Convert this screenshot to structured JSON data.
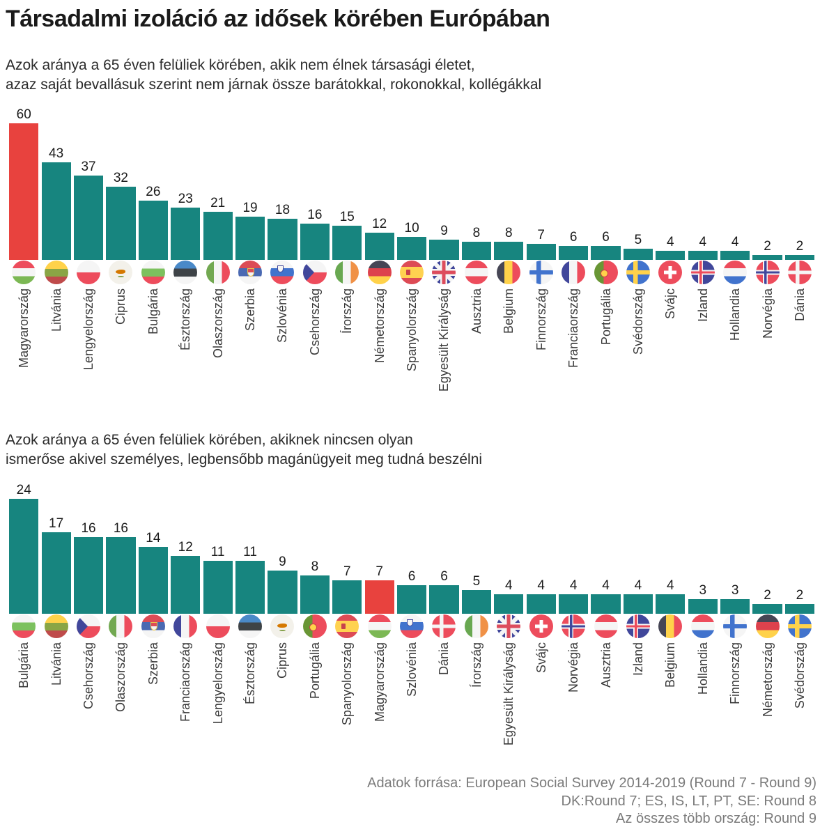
{
  "header": {
    "title": "Társadalmi izoláció az idősek körében Európában"
  },
  "footer": {
    "lines": [
      "Adatok forrása: European Social Survey 2014-2019 (Round 7 - Round 9)",
      "DK:Round 7;  ES, IS, LT, PT, SE: Round 8",
      "Az összes több ország: Round 9"
    ]
  },
  "colors": {
    "bar": "#17857f",
    "highlight": "#e8423e",
    "value_label": "#1a1a1a",
    "category_label": "#3a3a3a",
    "footer_text": "#7b7b7b"
  },
  "chart_data": [
    {
      "type": "bar",
      "title_lines": [
        "Azok aránya a 65 éven felüliek körében, akik nem élnek társasági életet,",
        "azaz saját bevallásuk szerint nem járnak össze barátokkal, rokonokkal, kollégákkal"
      ],
      "categories": [
        "Magyarország",
        "Litvánia",
        "Lengyelország",
        "Ciprus",
        "Bulgária",
        "Észtország",
        "Olaszország",
        "Szerbia",
        "Szlovénia",
        "Csehország",
        "Írország",
        "Németország",
        "Spanyolország",
        "Egyesült Királyság",
        "Ausztria",
        "Belgium",
        "Finnország",
        "Franciaország",
        "Portugália",
        "Svédország",
        "Svájc",
        "Izland",
        "Hollandia",
        "Norvégia",
        "Dánia"
      ],
      "values": [
        60,
        43,
        37,
        32,
        26,
        23,
        21,
        19,
        18,
        16,
        15,
        12,
        10,
        9,
        8,
        8,
        7,
        6,
        6,
        5,
        4,
        4,
        4,
        2,
        2
      ],
      "flags": [
        "hu",
        "lt",
        "pl",
        "cy",
        "bg",
        "ee",
        "it",
        "rs",
        "si",
        "cz",
        "ie",
        "de",
        "es",
        "gb",
        "at",
        "be",
        "fi",
        "fr",
        "pt",
        "se",
        "ch",
        "is",
        "nl",
        "no",
        "dk"
      ],
      "highlight_category": "Magyarország",
      "ylim": [
        0,
        60
      ],
      "grid": false,
      "legend": false,
      "value_labels_position": "above bars"
    },
    {
      "type": "bar",
      "title_lines": [
        "Azok aránya a 65 éven felüliek körében, akiknek nincsen olyan",
        "ismerőse akivel személyes, legbensőbb magánügyeit meg tudná beszélni"
      ],
      "categories": [
        "Bulgária",
        "Litvánia",
        "Csehország",
        "Olaszország",
        "Szerbia",
        "Franciaország",
        "Lengyelország",
        "Észtország",
        "Ciprus",
        "Portugália",
        "Spanyolország",
        "Magyarország",
        "Szlovénia",
        "Dánia",
        "Írország",
        "Egyesült Királyság",
        "Svájc",
        "Norvégia",
        "Ausztria",
        "Izland",
        "Belgium",
        "Hollandia",
        "Finnország",
        "Németország",
        "Svédország"
      ],
      "values": [
        24,
        17,
        16,
        16,
        14,
        12,
        11,
        11,
        9,
        8,
        7,
        7,
        6,
        6,
        5,
        4,
        4,
        4,
        4,
        4,
        4,
        3,
        3,
        2,
        2
      ],
      "flags": [
        "bg",
        "lt",
        "cz",
        "it",
        "rs",
        "fr",
        "pl",
        "ee",
        "cy",
        "pt",
        "es",
        "hu",
        "si",
        "dk",
        "ie",
        "gb",
        "ch",
        "no",
        "at",
        "is",
        "be",
        "nl",
        "fi",
        "de",
        "se"
      ],
      "highlight_category": "Magyarország",
      "ylim": [
        0,
        24
      ],
      "grid": false,
      "legend": false,
      "value_labels_position": "above bars"
    }
  ]
}
